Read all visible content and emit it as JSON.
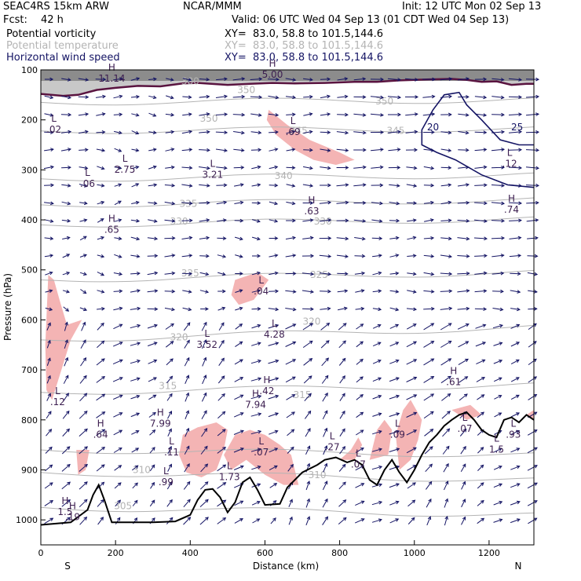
{
  "header": {
    "model": "SEAC4RS 15km ARW",
    "org": "NCAR/MMM",
    "init": "Init: 12 UTC Mon 02 Sep 13",
    "fcst_label": "Fcst:",
    "fcst_value": "42 h",
    "valid": "Valid: 06 UTC Wed 04 Sep 13 (01 CDT Wed 04 Sep 13)",
    "fields": [
      {
        "name": "Potential vorticity",
        "xy": "XY=  83.0, 58.8 to 101.5,144.6",
        "color": "#000000"
      },
      {
        "name": "Potential temperature",
        "xy": "XY=  83.0, 58.8 to 101.5,144.6",
        "color": "#b4b4b4"
      },
      {
        "name": "Horizontal wind speed",
        "xy": "XY=  83.0, 58.8 to 101.5,144.6",
        "color": "#141464"
      }
    ]
  },
  "chart_data": {
    "type": "cross-section",
    "xlabel": "Distance (km)",
    "ylabel": "Pressure (hPa)",
    "x_ticks": [
      0,
      200,
      400,
      600,
      800,
      1000,
      1200
    ],
    "y_ticks": [
      100,
      200,
      300,
      400,
      500,
      600,
      700,
      800,
      900,
      1000
    ],
    "xlim": [
      0,
      1320
    ],
    "ylim": [
      1050,
      100
    ],
    "endpoints": {
      "left": "S",
      "right": "N"
    },
    "colors": {
      "pv_fill": "#f4b4b4",
      "theta": "#b4b4b4",
      "wind": "#141464",
      "terrain": "#000000"
    },
    "theta_contours": [
      {
        "label": "305",
        "x": 220,
        "p": 972
      },
      {
        "label": "310",
        "x": 270,
        "p": 900
      },
      {
        "label": "310",
        "x": 740,
        "p": 910
      },
      {
        "label": "315",
        "x": 340,
        "p": 732
      },
      {
        "label": "315",
        "x": 700,
        "p": 750
      },
      {
        "label": "320",
        "x": 370,
        "p": 635
      },
      {
        "label": "320",
        "x": 725,
        "p": 603
      },
      {
        "label": "325",
        "x": 400,
        "p": 507
      },
      {
        "label": "325",
        "x": 745,
        "p": 510
      },
      {
        "label": "330",
        "x": 370,
        "p": 403
      },
      {
        "label": "330",
        "x": 755,
        "p": 403
      },
      {
        "label": "335",
        "x": 395,
        "p": 368
      },
      {
        "label": "340",
        "x": 650,
        "p": 312
      },
      {
        "label": "345",
        "x": 690,
        "p": 222
      },
      {
        "label": "345",
        "x": 950,
        "p": 222
      },
      {
        "label": "350",
        "x": 450,
        "p": 197
      },
      {
        "label": "350",
        "x": 550,
        "p": 140
      },
      {
        "label": "350",
        "x": 920,
        "p": 163
      },
      {
        "label": "380",
        "x": 400,
        "p": 123
      }
    ],
    "wind_contour_labels": [
      {
        "label": "20",
        "x": 1050,
        "p": 215
      },
      {
        "label": "25",
        "x": 1275,
        "p": 215
      }
    ],
    "extrema": [
      {
        "type": "H",
        "value": "11.14",
        "x": 190,
        "p": 108
      },
      {
        "type": "H",
        "value": "5.00",
        "x": 620,
        "p": 100
      },
      {
        "type": "L",
        "value": ".02",
        "x": 35,
        "p": 210
      },
      {
        "type": "L",
        "value": "2.75",
        "x": 225,
        "p": 290
      },
      {
        "type": "L",
        "value": ".06",
        "x": 125,
        "p": 318
      },
      {
        "type": "L",
        "value": "3.21",
        "x": 460,
        "p": 300
      },
      {
        "type": "L",
        "value": ".69",
        "x": 675,
        "p": 215
      },
      {
        "type": "H",
        "value": ".63",
        "x": 725,
        "p": 373
      },
      {
        "type": "H",
        "value": ".65",
        "x": 190,
        "p": 410
      },
      {
        "type": "L",
        "value": ".04",
        "x": 590,
        "p": 533
      },
      {
        "type": "L",
        "value": "3.52",
        "x": 445,
        "p": 640
      },
      {
        "type": "L",
        "value": "4.28",
        "x": 625,
        "p": 620
      },
      {
        "type": "H",
        "value": "7.94",
        "x": 575,
        "p": 760
      },
      {
        "type": "H",
        "value": ".42",
        "x": 605,
        "p": 733
      },
      {
        "type": "H",
        "value": "7.99",
        "x": 320,
        "p": 798
      },
      {
        "type": "H",
        "value": ".64",
        "x": 160,
        "p": 820
      },
      {
        "type": "L",
        "value": ".12",
        "x": 45,
        "p": 755
      },
      {
        "type": "L",
        "value": ".11",
        "x": 350,
        "p": 855
      },
      {
        "type": "L",
        "value": ".07",
        "x": 590,
        "p": 855
      },
      {
        "type": "L",
        "value": ".27",
        "x": 780,
        "p": 845
      },
      {
        "type": "L",
        "value": ".07",
        "x": 850,
        "p": 880
      },
      {
        "type": "L",
        "value": ".09",
        "x": 955,
        "p": 820
      },
      {
        "type": "L",
        "value": "1.73",
        "x": 505,
        "p": 905
      },
      {
        "type": "L",
        "value": ".99",
        "x": 335,
        "p": 915
      },
      {
        "type": "L",
        "value": ".07",
        "x": 1135,
        "p": 808
      },
      {
        "type": "L",
        "value": "1.5",
        "x": 1220,
        "p": 850
      },
      {
        "type": "L",
        "value": ".93",
        "x": 1265,
        "p": 820
      },
      {
        "type": "H",
        "value": ".61",
        "x": 1105,
        "p": 715
      },
      {
        "type": "L",
        "value": ".12",
        "x": 1255,
        "p": 278
      },
      {
        "type": "H",
        "value": ".74",
        "x": 1260,
        "p": 370
      },
      {
        "type": "H",
        "value": ".19",
        "x": 85,
        "p": 985
      },
      {
        "type": "H",
        "value": "1.5",
        "x": 65,
        "p": 975
      }
    ],
    "terrain": [
      [
        0,
        1010
      ],
      [
        80,
        1005
      ],
      [
        125,
        980
      ],
      [
        140,
        950
      ],
      [
        155,
        930
      ],
      [
        170,
        960
      ],
      [
        190,
        1005
      ],
      [
        300,
        1005
      ],
      [
        360,
        1003
      ],
      [
        400,
        990
      ],
      [
        420,
        960
      ],
      [
        440,
        940
      ],
      [
        460,
        938
      ],
      [
        480,
        955
      ],
      [
        500,
        985
      ],
      [
        520,
        965
      ],
      [
        540,
        925
      ],
      [
        560,
        915
      ],
      [
        580,
        940
      ],
      [
        600,
        970
      ],
      [
        640,
        968
      ],
      [
        660,
        935
      ],
      [
        700,
        905
      ],
      [
        740,
        890
      ],
      [
        760,
        880
      ],
      [
        790,
        875
      ],
      [
        820,
        885
      ],
      [
        840,
        880
      ],
      [
        860,
        890
      ],
      [
        880,
        920
      ],
      [
        900,
        930
      ],
      [
        920,
        900
      ],
      [
        940,
        880
      ],
      [
        960,
        905
      ],
      [
        980,
        925
      ],
      [
        1000,
        900
      ],
      [
        1020,
        870
      ],
      [
        1040,
        845
      ],
      [
        1060,
        830
      ],
      [
        1080,
        812
      ],
      [
        1100,
        800
      ],
      [
        1120,
        790
      ],
      [
        1140,
        785
      ],
      [
        1160,
        800
      ],
      [
        1180,
        820
      ],
      [
        1200,
        830
      ],
      [
        1220,
        835
      ],
      [
        1240,
        800
      ],
      [
        1260,
        795
      ],
      [
        1280,
        805
      ],
      [
        1300,
        790
      ],
      [
        1320,
        800
      ]
    ]
  }
}
